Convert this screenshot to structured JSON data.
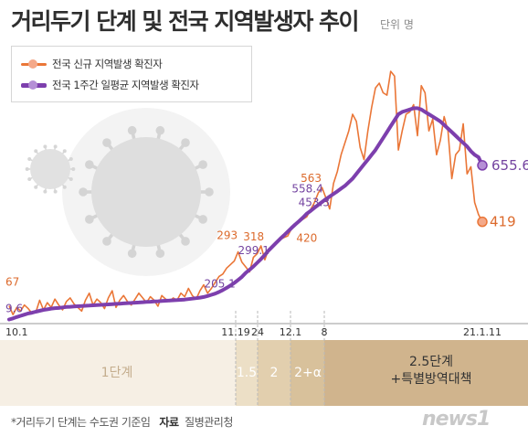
{
  "header": {
    "title": "거리두기 단계 및 전국 지역발생자 추이",
    "unit": "단위 명"
  },
  "legend": [
    {
      "label": "전국 신규 지역발생 확진자",
      "color": "#ea7637"
    },
    {
      "label": "전국 1주간 일평균 지역발생 확진자",
      "color": "#7d3fad"
    }
  ],
  "footer": {
    "note": "*거리두기 단계는 수도권 기준임",
    "source_label": "자료",
    "source": "질병관리청",
    "logo": "news1"
  },
  "colors": {
    "daily": "#ea7637",
    "avg": "#7d3fad",
    "daily_label": "#dc6a2c",
    "avg_label": "#7444a0",
    "band_1": "#f6efe4",
    "band_15": "#ecdfc6",
    "band_2": "#e2cfae",
    "band_2a": "#d8c19b",
    "band_25": "#d0b48d"
  },
  "chart_data": {
    "type": "line",
    "title": "거리두기 단계 및 전국 지역발생자 추이",
    "x_tick_labels": [
      "10.1",
      "11.19",
      "24",
      "12.1",
      "8",
      "21.1.11"
    ],
    "y_range": [
      0,
      1050
    ],
    "series": [
      {
        "name": "전국 신규 지역발생 확진자",
        "values": [
          67,
          30,
          60,
          45,
          70,
          55,
          35,
          40,
          90,
          50,
          80,
          60,
          95,
          70,
          50,
          85,
          100,
          75,
          60,
          45,
          90,
          120,
          70,
          95,
          80,
          55,
          100,
          130,
          60,
          90,
          110,
          85,
          70,
          95,
          120,
          100,
          80,
          105,
          90,
          65,
          110,
          95,
          85,
          100,
          90,
          120,
          105,
          140,
          110,
          95,
          130,
          155,
          120,
          140,
          165,
          190,
          200,
          225,
          240,
          255,
          293,
          250,
          230,
          209,
          270,
          285,
          318,
          260,
          305,
          320,
          330,
          345,
          353,
          360,
          390,
          410,
          420,
          430,
          440,
          470,
          500,
          540,
          563,
          520,
          473,
          580,
          630,
          700,
          750,
          800,
          870,
          840,
          730,
          680,
          800,
          900,
          980,
          1000,
          960,
          950,
          1050,
          1030,
          720,
          800,
          870,
          880,
          910,
          780,
          990,
          960,
          800,
          850,
          700,
          760,
          860,
          800,
          600,
          700,
          720,
          830,
          620,
          650,
          500,
          450,
          419
        ],
        "labeled_points": [
          {
            "date": "10.1",
            "value": 67
          },
          {
            "date": "11.19",
            "value": 293
          },
          {
            "date": "11.24",
            "value": 318
          },
          {
            "date": "12.1",
            "value": 420
          },
          {
            "date": "12.8",
            "value": 563
          },
          {
            "date": "21.1.11",
            "value": 419
          }
        ]
      },
      {
        "name": "전국 1주간 일평균 지역발생 확진자",
        "values": [
          9.6,
          14,
          20,
          25,
          30,
          35,
          38,
          42,
          46,
          50,
          52,
          55,
          57,
          58,
          60,
          62,
          63,
          64,
          65,
          66,
          67,
          68,
          69,
          70,
          71,
          72,
          73,
          74,
          75,
          76,
          77,
          78,
          79,
          80,
          81,
          82,
          83,
          84,
          85,
          86,
          87,
          88,
          89,
          90,
          91,
          92,
          93,
          95,
          97,
          99,
          101,
          104,
          108,
          113,
          118,
          125,
          133,
          142,
          152,
          163,
          175,
          188,
          205.1,
          218,
          232,
          247,
          263,
          280,
          299.1,
          315,
          331,
          347,
          362,
          378,
          393,
          408,
          422,
          437,
          453.3,
          465,
          478,
          490,
          502,
          514,
          525,
          536,
          547,
          558.4,
          570,
          585,
          600,
          620,
          640,
          660,
          680,
          700,
          720,
          745,
          770,
          795,
          820,
          845,
          870,
          880,
          885,
          890,
          895,
          895,
          890,
          880,
          870,
          860,
          850,
          840,
          825,
          810,
          795,
          780,
          765,
          750,
          735,
          715,
          700,
          690,
          655.6
        ],
        "labeled_points": [
          {
            "date": "10.1",
            "value": 9.6
          },
          {
            "date": "11.19",
            "value": 205.1
          },
          {
            "date": "11.24",
            "value": 299.1
          },
          {
            "date": "12.1",
            "value": 453.3
          },
          {
            "date": "12.8",
            "value": 558.4
          },
          {
            "date": "21.1.11",
            "value": 655.6
          }
        ]
      }
    ],
    "phases": [
      {
        "label": "1단계"
      },
      {
        "label": "1.5"
      },
      {
        "label": "2"
      },
      {
        "label": "2+α"
      },
      {
        "label": "2.5단계",
        "sublabel": "+특별방역대책"
      }
    ],
    "grid": false,
    "legend_position": "top-left"
  }
}
